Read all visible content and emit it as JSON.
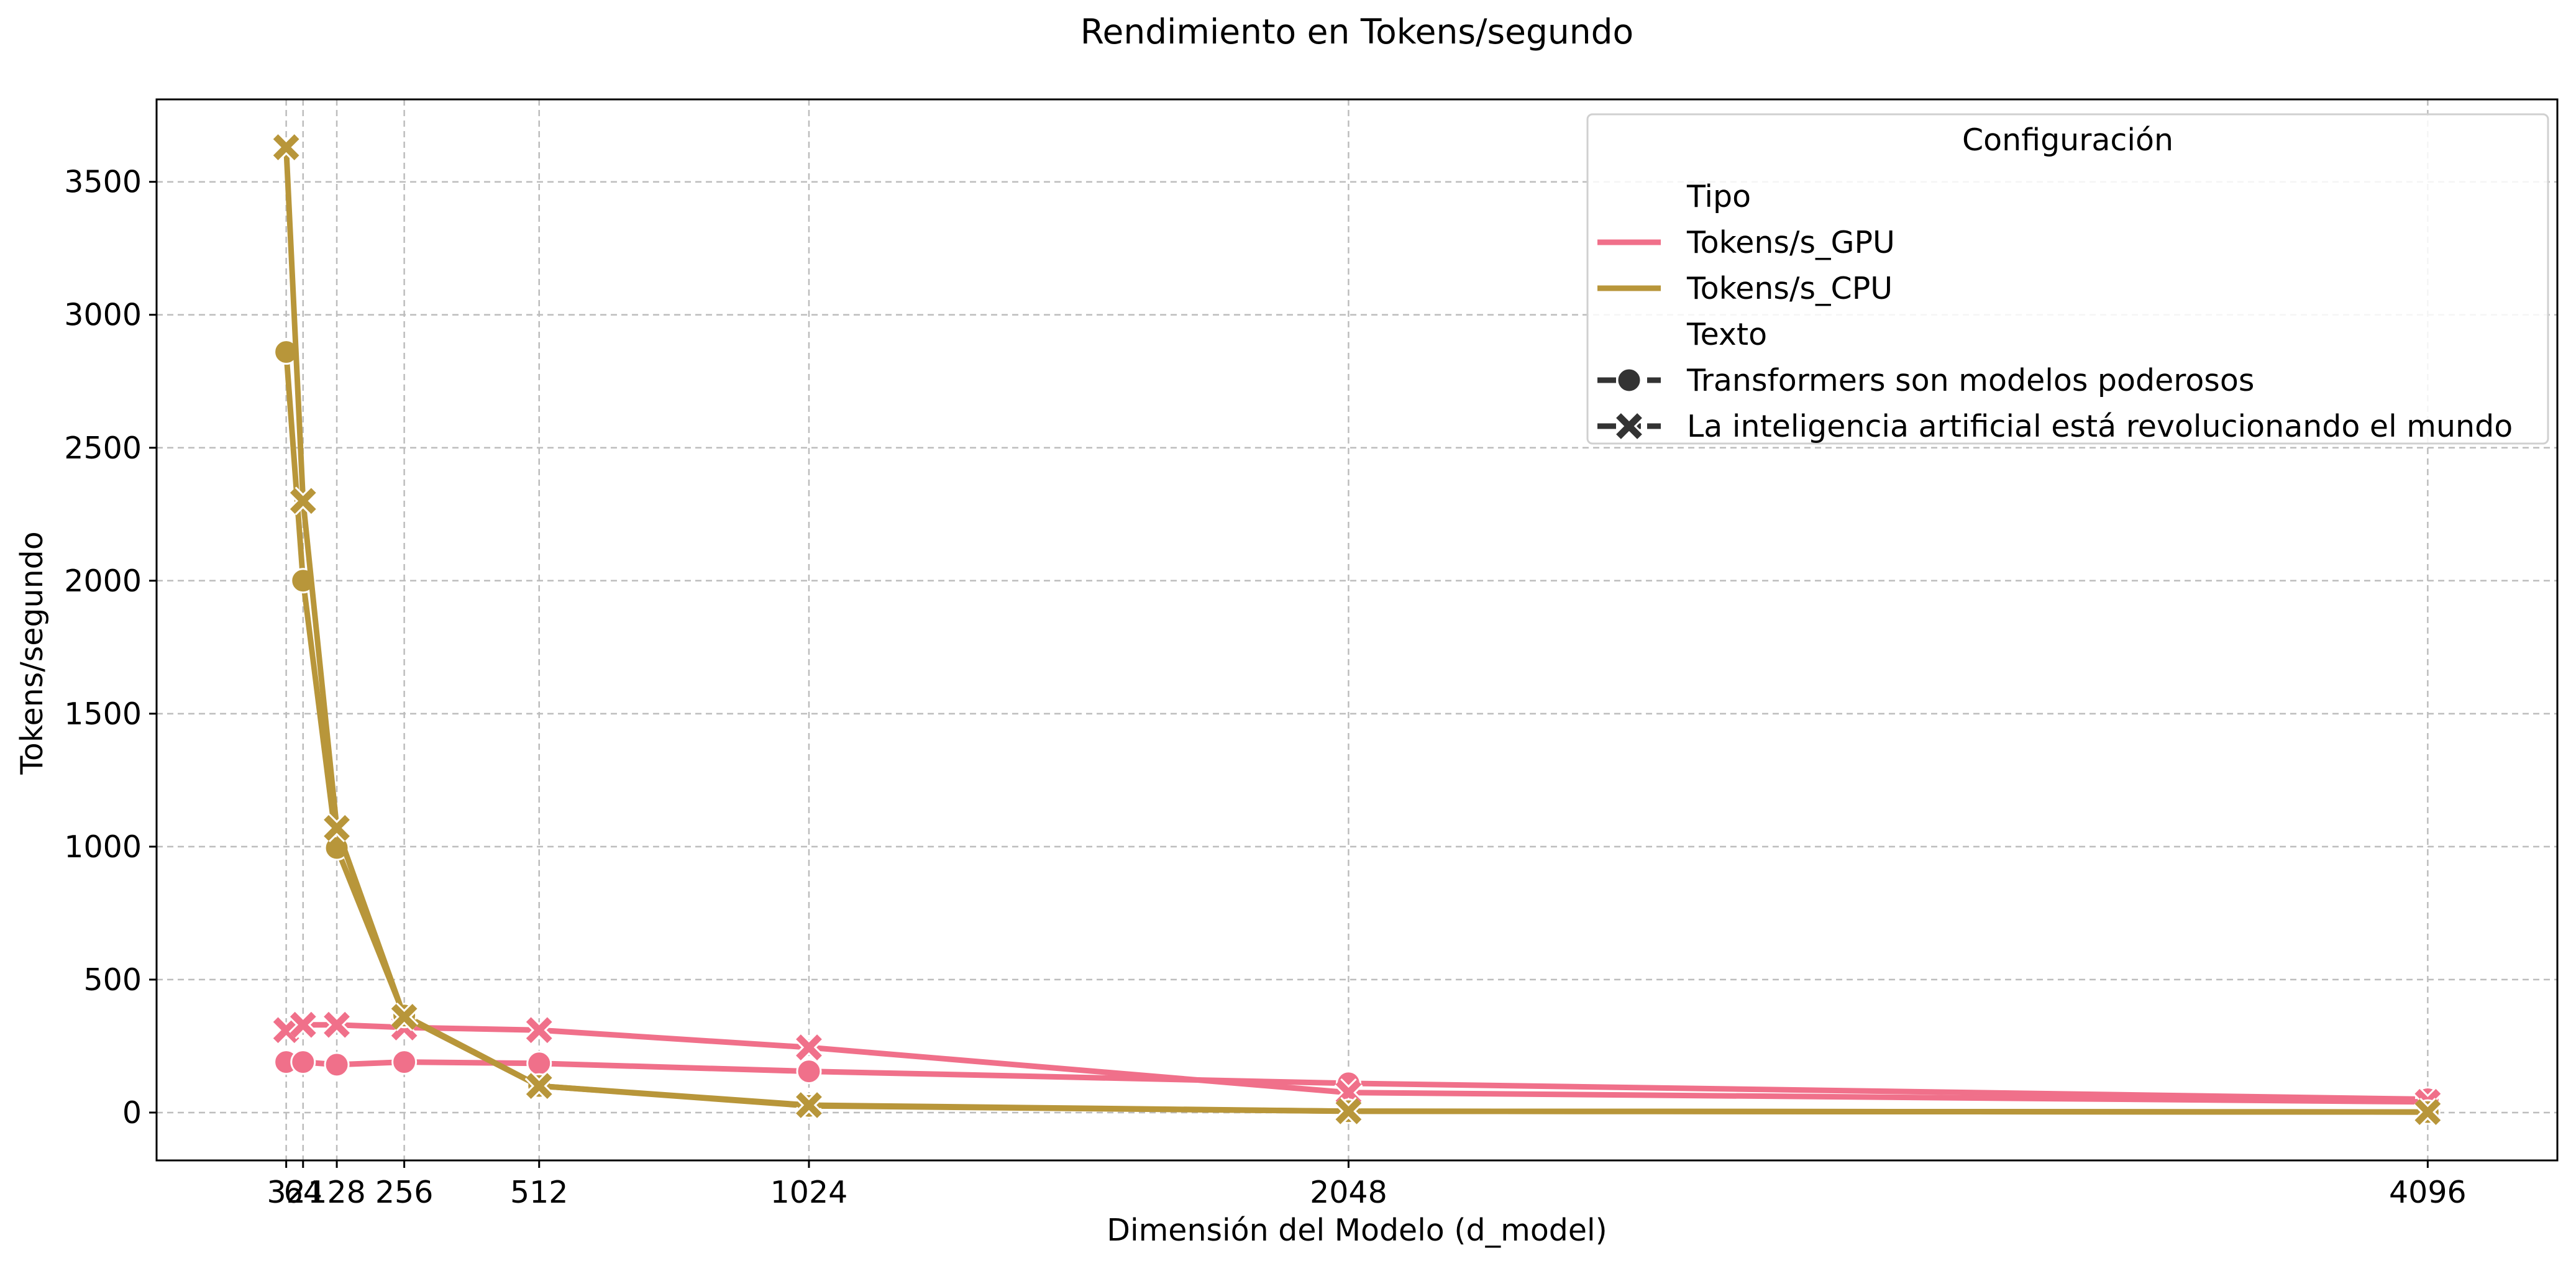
{
  "chart_data": {
    "type": "line",
    "title": "Rendimiento en Tokens/segundo",
    "xlabel": "Dimensión del Modelo (d_model)",
    "ylabel": "Tokens/segundo",
    "x_ticks": [
      32,
      64,
      128,
      256,
      512,
      1024,
      2048,
      4096
    ],
    "x_tick_labels": [
      "32",
      "64",
      "128",
      "256",
      "512",
      "1024",
      "2048",
      "4096"
    ],
    "y_ticks": [
      0,
      500,
      1000,
      1500,
      2000,
      2500,
      3000,
      3500
    ],
    "y_tick_labels": [
      "0",
      "500",
      "1000",
      "1500",
      "2000",
      "2500",
      "3000",
      "3500"
    ],
    "xlim": [
      -214,
      4342
    ],
    "ylim": [
      -180,
      3810
    ],
    "grid": true,
    "legend": {
      "title": "Configuración",
      "placement": "top-right",
      "group_titles": {
        "hue": "Tipo",
        "style": "Texto"
      },
      "hue_entries": [
        {
          "label": "Tokens/s_GPU",
          "color": "#f0708a"
        },
        {
          "label": "Tokens/s_CPU",
          "color": "#b8963a"
        }
      ],
      "style_entries": [
        {
          "label": "Transformers son modelos poderosos",
          "marker": "circle"
        },
        {
          "label": "La inteligencia artificial está revolucionando el mundo",
          "marker": "x"
        }
      ]
    },
    "series": [
      {
        "name": "Tokens/s_GPU · Transformers son modelos poderosos",
        "color": "#f0708a",
        "marker": "circle",
        "x": [
          32,
          64,
          128,
          256,
          512,
          1024,
          2048,
          4096
        ],
        "y": [
          190,
          190,
          180,
          190,
          185,
          155,
          110,
          50
        ]
      },
      {
        "name": "Tokens/s_GPU · La inteligencia artificial está revolucionando el mundo",
        "color": "#f0708a",
        "marker": "x",
        "x": [
          32,
          64,
          128,
          256,
          512,
          1024,
          2048,
          4096
        ],
        "y": [
          310,
          330,
          330,
          320,
          310,
          245,
          75,
          40
        ]
      },
      {
        "name": "Tokens/s_CPU · Transformers son modelos poderosos",
        "color": "#b8963a",
        "marker": "circle",
        "x": [
          32,
          64,
          128,
          256,
          512,
          1024,
          2048,
          4096
        ],
        "y": [
          2860,
          2000,
          995,
          365,
          100,
          25,
          5,
          2
        ]
      },
      {
        "name": "Tokens/s_CPU · La inteligencia artificial está revolucionando el mundo",
        "color": "#b8963a",
        "marker": "x",
        "x": [
          32,
          64,
          128,
          256,
          512,
          1024,
          2048,
          4096
        ],
        "y": [
          3630,
          2300,
          1070,
          360,
          100,
          28,
          5,
          2
        ]
      }
    ]
  }
}
